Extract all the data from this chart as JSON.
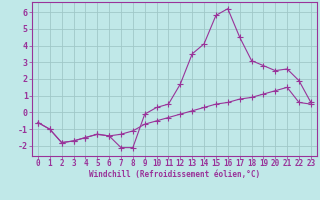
{
  "xlabel": "Windchill (Refroidissement éolien,°C)",
  "bg_color": "#c0e8e8",
  "line_color": "#993399",
  "grid_color": "#a0c8c8",
  "curve1_x": [
    0,
    1,
    2,
    3,
    4,
    5,
    6,
    7,
    8,
    9,
    10,
    11,
    12,
    13,
    14,
    15,
    16,
    17,
    18,
    19,
    20,
    21,
    22,
    23
  ],
  "curve1_y": [
    -0.6,
    -1.0,
    -1.8,
    -1.7,
    -1.5,
    -1.3,
    -1.4,
    -2.1,
    -2.1,
    -0.1,
    0.3,
    0.5,
    1.7,
    3.5,
    4.1,
    5.8,
    6.2,
    4.5,
    3.1,
    2.8,
    2.5,
    2.6,
    1.9,
    0.6
  ],
  "curve2_x": [
    0,
    1,
    2,
    3,
    4,
    5,
    6,
    7,
    8,
    9,
    10,
    11,
    12,
    13,
    14,
    15,
    16,
    17,
    18,
    19,
    20,
    21,
    22,
    23
  ],
  "curve2_y": [
    -0.6,
    -1.0,
    -1.8,
    -1.7,
    -1.5,
    -1.3,
    -1.4,
    -1.3,
    -1.1,
    -0.7,
    -0.5,
    -0.3,
    -0.1,
    0.1,
    0.3,
    0.5,
    0.6,
    0.8,
    0.9,
    1.1,
    1.3,
    1.5,
    0.6,
    0.5
  ],
  "ylim": [
    -2.6,
    6.6
  ],
  "yticks": [
    -2,
    -1,
    0,
    1,
    2,
    3,
    4,
    5,
    6
  ],
  "xlim": [
    -0.5,
    23.5
  ],
  "xticks": [
    0,
    1,
    2,
    3,
    4,
    5,
    6,
    7,
    8,
    9,
    10,
    11,
    12,
    13,
    14,
    15,
    16,
    17,
    18,
    19,
    20,
    21,
    22,
    23
  ],
  "tick_fontsize": 5.5,
  "xlabel_fontsize": 5.5,
  "marker_size": 2.0,
  "line_width": 0.8
}
